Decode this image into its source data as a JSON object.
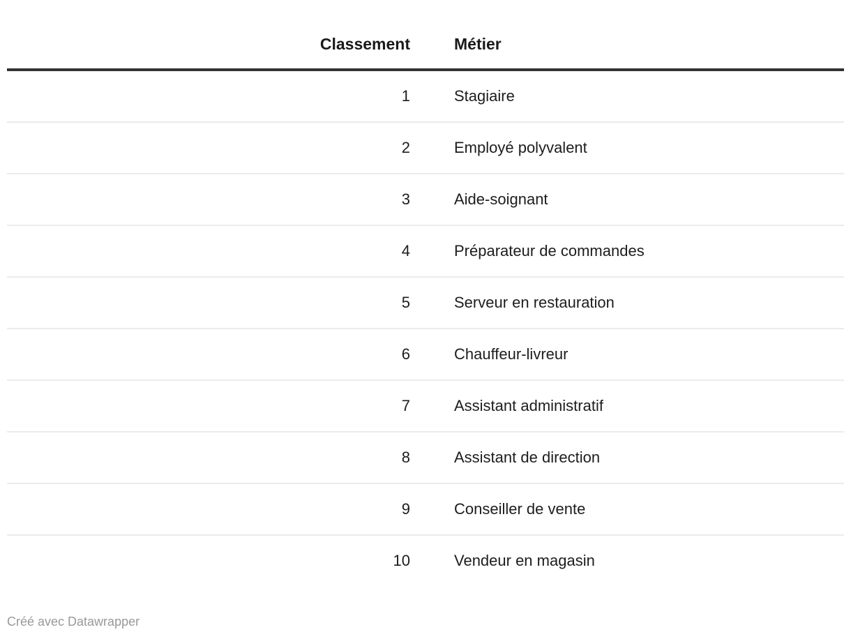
{
  "chart_data": {
    "type": "table",
    "columns": [
      "Classement",
      "Métier"
    ],
    "rows": [
      [
        1,
        "Stagiaire"
      ],
      [
        2,
        "Employé polyvalent"
      ],
      [
        3,
        "Aide-soignant"
      ],
      [
        4,
        "Préparateur de commandes"
      ],
      [
        5,
        "Serveur en restauration"
      ],
      [
        6,
        "Chauffeur-livreur"
      ],
      [
        7,
        "Assistant administratif"
      ],
      [
        8,
        "Assistant de direction"
      ],
      [
        9,
        "Conseiller de vente"
      ],
      [
        10,
        "Vendeur en magasin"
      ]
    ],
    "title": "",
    "legend_position": "none",
    "grid": "row-dividers"
  },
  "table": {
    "header": {
      "classement": "Classement",
      "metier": "Métier"
    },
    "rows": [
      {
        "classement": "1",
        "metier": "Stagiaire"
      },
      {
        "classement": "2",
        "metier": "Employé polyvalent"
      },
      {
        "classement": "3",
        "metier": "Aide-soignant"
      },
      {
        "classement": "4",
        "metier": "Préparateur de commandes"
      },
      {
        "classement": "5",
        "metier": "Serveur en restauration"
      },
      {
        "classement": "6",
        "metier": "Chauffeur-livreur"
      },
      {
        "classement": "7",
        "metier": "Assistant administratif"
      },
      {
        "classement": "8",
        "metier": "Assistant de direction"
      },
      {
        "classement": "9",
        "metier": "Conseiller de vente"
      },
      {
        "classement": "10",
        "metier": "Vendeur en magasin"
      }
    ]
  },
  "footer": {
    "credit": "Créé avec Datawrapper"
  },
  "colors": {
    "background": "#ffffff",
    "text": "#1d1d1d",
    "header_text": "#1a1a1a",
    "header_border": "#333333",
    "row_divider": "#ebebeb",
    "credit_text": "#999999"
  }
}
